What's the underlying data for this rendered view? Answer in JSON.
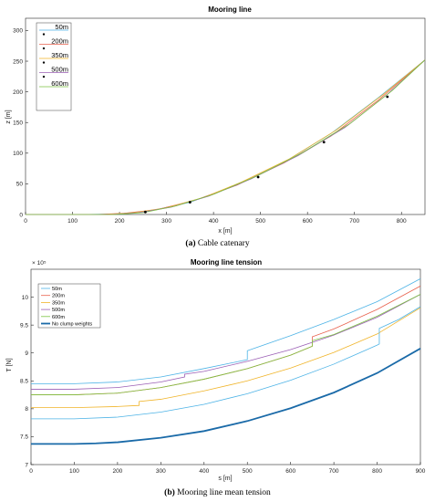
{
  "figure": {
    "caption_a_label": "(a)",
    "caption_a_text": "Cable catenary",
    "caption_b_label": "(b)",
    "caption_b_text": "Mooring line mean tension"
  },
  "colors": {
    "50m": "#4db3e6",
    "200m": "#e8604c",
    "350m": "#f0b429",
    "500m": "#9b5fb5",
    "600m": "#7cc341",
    "no_clump": "#1a6aa8"
  },
  "chart_data": [
    {
      "type": "line",
      "title": "Mooring line",
      "xlabel": "x [m]",
      "ylabel": "z [m]",
      "xlim": [
        0,
        850
      ],
      "ylim": [
        0,
        320
      ],
      "xticks": [
        0,
        100,
        200,
        300,
        400,
        500,
        600,
        700,
        800
      ],
      "yticks": [
        0,
        50,
        100,
        150,
        200,
        250,
        300
      ],
      "grid": false,
      "legend_position": "top-left",
      "series": [
        {
          "name": "50m",
          "color_key": "50m",
          "x": [
            0,
            120,
            200,
            260,
            350,
            450,
            550,
            650,
            750,
            850
          ],
          "y": [
            0,
            0,
            1,
            5,
            20,
            48,
            85,
            132,
            190,
            252
          ]
        },
        {
          "name": "200m",
          "color_key": "200m",
          "x": [
            0,
            150,
            210,
            280,
            360,
            450,
            550,
            650,
            750,
            850
          ],
          "y": [
            0,
            0,
            2,
            8,
            23,
            48,
            84,
            128,
            186,
            252
          ]
        },
        {
          "name": "350m",
          "color_key": "350m",
          "x": [
            0,
            170,
            230,
            300,
            380,
            460,
            560,
            660,
            760,
            850
          ],
          "y": [
            0,
            0,
            3,
            11,
            28,
            53,
            90,
            137,
            195,
            252
          ]
        },
        {
          "name": "500m",
          "color_key": "500m",
          "x": [
            0,
            180,
            240,
            310,
            390,
            480,
            580,
            680,
            770,
            850
          ],
          "y": [
            0,
            0,
            3,
            12,
            30,
            58,
            96,
            142,
            196,
            252
          ]
        },
        {
          "name": "600m",
          "color_key": "600m",
          "x": [
            0,
            190,
            250,
            320,
            400,
            490,
            590,
            690,
            780,
            850
          ],
          "y": [
            0,
            0,
            3,
            14,
            33,
            62,
            101,
            148,
            202,
            252
          ]
        }
      ],
      "markers": {
        "x": [
          255,
          350,
          495,
          635,
          770
        ],
        "y": [
          4,
          20,
          61,
          118,
          192
        ]
      }
    },
    {
      "type": "line",
      "title": "Mooring line tension",
      "xlabel": "s [m]",
      "ylabel": "T [N]",
      "y_multiplier": "× 10⁵",
      "xlim": [
        0,
        900
      ],
      "ylim": [
        7,
        10.5
      ],
      "xticks": [
        0,
        100,
        200,
        300,
        400,
        500,
        600,
        700,
        800,
        900
      ],
      "yticks": [
        7,
        7.5,
        8,
        8.5,
        9,
        9.5,
        10
      ],
      "grid": false,
      "legend_position": "top-left",
      "series": [
        {
          "name": "50m",
          "color_key": "50m",
          "x": [
            0,
            100,
            200,
            300,
            400,
            500,
            500,
            600,
            700,
            800,
            900
          ],
          "y": [
            8.45,
            8.45,
            8.48,
            8.57,
            8.72,
            8.88,
            9.04,
            9.31,
            9.6,
            9.92,
            10.33
          ]
        },
        {
          "name": "200m",
          "color_key": "200m",
          "x": [
            0,
            100,
            200,
            300,
            400,
            500,
            600,
            650,
            650,
            700,
            800,
            900
          ],
          "y": [
            8.25,
            8.25,
            8.28,
            8.38,
            8.53,
            8.72,
            8.96,
            9.12,
            9.29,
            9.43,
            9.78,
            10.2
          ]
        },
        {
          "name": "350m",
          "color_key": "350m",
          "x": [
            0,
            100,
            200,
            250,
            250,
            300,
            400,
            500,
            600,
            700,
            800,
            900
          ],
          "y": [
            8.02,
            8.02,
            8.04,
            8.06,
            8.13,
            8.17,
            8.32,
            8.5,
            8.73,
            9.01,
            9.34,
            9.81
          ]
        },
        {
          "name": "500m",
          "color_key": "500m",
          "x": [
            0,
            100,
            200,
            300,
            355,
            355,
            400,
            500,
            600,
            700,
            800,
            900
          ],
          "y": [
            8.35,
            8.35,
            8.38,
            8.48,
            8.57,
            8.62,
            8.67,
            8.85,
            9.06,
            9.32,
            9.64,
            10.05
          ]
        },
        {
          "name": "600m",
          "color_key": "600m",
          "x": [
            0,
            100,
            200,
            300,
            400,
            500,
            600,
            650,
            650,
            700,
            800,
            900
          ],
          "y": [
            8.25,
            8.25,
            8.28,
            8.38,
            8.53,
            8.72,
            8.96,
            9.12,
            9.22,
            9.33,
            9.66,
            10.05
          ]
        },
        {
          "name": "No clump weights",
          "color_key": "no_clump",
          "x": [
            0,
            50,
            100,
            150,
            200,
            300,
            400,
            500,
            600,
            700,
            800,
            900
          ],
          "y": [
            7.37,
            7.37,
            7.37,
            7.38,
            7.4,
            7.48,
            7.6,
            7.78,
            8.01,
            8.29,
            8.64,
            9.08
          ]
        }
      ],
      "extra_series": [
        {
          "color_key": "50m",
          "x": [
            0,
            100,
            200,
            300,
            400,
            500,
            600,
            700,
            800,
            805,
            805,
            850,
            900
          ],
          "y": [
            7.82,
            7.82,
            7.85,
            7.94,
            8.08,
            8.27,
            8.51,
            8.8,
            9.14,
            9.16,
            9.44,
            9.6,
            9.83
          ]
        }
      ]
    }
  ]
}
